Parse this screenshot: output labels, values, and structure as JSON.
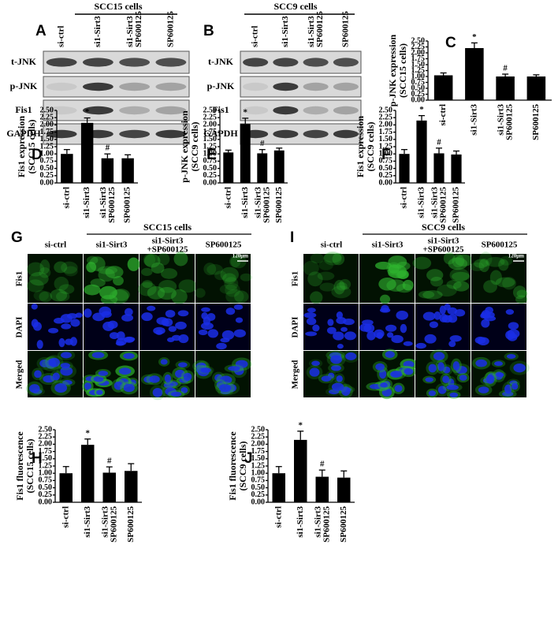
{
  "figure": {
    "panel_labels": [
      "A",
      "B",
      "C",
      "D",
      "E",
      "F",
      "G",
      "H",
      "I",
      "J"
    ],
    "western": [
      {
        "header": "SCC15 cells",
        "lanes": [
          "si-ctrl",
          "si1-Sirt3",
          "si1-Sirt3\nSP600125",
          "SP600125"
        ],
        "rows": [
          "t-JNK",
          "p-JNK",
          "Fis1",
          "GAPDH"
        ]
      },
      {
        "header": "SCC9 cells",
        "lanes": [
          "si-ctrl",
          "si1-Sirt3",
          "si1-Sirt3\nSP600125",
          "SP600125"
        ],
        "rows": [
          "t-JNK",
          "p-JNK",
          "Fis1",
          "GAPDH"
        ]
      }
    ],
    "imaging": [
      {
        "header": "SCC15 cells",
        "columns": [
          "si-ctrl",
          "si1-Sirt3",
          "si1-Sirt3\n+SP600125",
          "SP600125"
        ],
        "rows": [
          "Fis1",
          "DAPI",
          "Merged"
        ],
        "scale": "120μm"
      },
      {
        "header": "SCC9 cells",
        "columns": [
          "si-ctrl",
          "si1-Sirt3",
          "si1-Sirt3\n+SP600125",
          "SP600125"
        ],
        "rows": [
          "Fis1",
          "DAPI",
          "Merged"
        ],
        "scale": "120μm"
      }
    ]
  },
  "chart_data": [
    {
      "type": "bar",
      "ylabel": [
        "p-JNK expression",
        "(SCC15 cells)"
      ],
      "categories": [
        "si-ctrl",
        "si1-Sirt3",
        "si1-Sirt3\nSP600125",
        "SP600125"
      ],
      "values": [
        1.05,
        2.2,
        1.0,
        1.0
      ],
      "errors": [
        0.1,
        0.22,
        0.1,
        0.07
      ],
      "annotations": [
        null,
        "*",
        "#",
        null
      ],
      "color": "#000000",
      "ylim": [
        0,
        2.5
      ],
      "yticks": [
        {
          "value": 0,
          "label": "0.00"
        },
        {
          "value": 0.25,
          "label": "0.25"
        },
        {
          "value": 0.5,
          "label": "0.50"
        },
        {
          "value": 0.75,
          "label": "0.75"
        },
        {
          "value": 1,
          "label": "1.00"
        },
        {
          "value": 1.25,
          "label": "1.25"
        },
        {
          "value": 1.5,
          "label": "1.50"
        },
        {
          "value": 1.75,
          "label": "1.75"
        },
        {
          "value": 2,
          "label": "2.00"
        },
        {
          "value": 2.25,
          "label": "2.25"
        },
        {
          "value": 2.5,
          "label": "2.50"
        }
      ]
    },
    {
      "type": "bar",
      "ylabel": [
        "Fis1 expression",
        "(SCC15 cells)"
      ],
      "categories": [
        "si-ctrl",
        "si1-Sirt3",
        "si1-Sirt3\nSP600125",
        "SP600125"
      ],
      "values": [
        1.0,
        2.07,
        0.85,
        0.85
      ],
      "errors": [
        0.15,
        0.17,
        0.15,
        0.12
      ],
      "annotations": [
        null,
        "*",
        "#",
        null
      ],
      "color": "#000000",
      "ylim": [
        0,
        2.5
      ],
      "yticks": [
        {
          "value": 0,
          "label": "0.00"
        },
        {
          "value": 0.25,
          "label": "0.25"
        },
        {
          "value": 0.5,
          "label": "0.50"
        },
        {
          "value": 0.75,
          "label": "0.75"
        },
        {
          "value": 1,
          "label": "1.00"
        },
        {
          "value": 1.25,
          "label": "1.25"
        },
        {
          "value": 1.5,
          "label": "1.50"
        },
        {
          "value": 1.75,
          "label": "1.75"
        },
        {
          "value": 2,
          "label": "2.00"
        },
        {
          "value": 2.25,
          "label": "2.25"
        },
        {
          "value": 2.5,
          "label": "2.50"
        }
      ]
    },
    {
      "type": "bar",
      "ylabel": [
        "p-JNK expression",
        "(SCC9 cells)"
      ],
      "categories": [
        "si-ctrl",
        "si1-Sirt3",
        "si1-Sirt3\nSP600125",
        "SP600125"
      ],
      "values": [
        1.05,
        2.03,
        1.02,
        1.12
      ],
      "errors": [
        0.08,
        0.2,
        0.13,
        0.08
      ],
      "annotations": [
        null,
        "*",
        "#",
        null
      ],
      "color": "#000000",
      "ylim": [
        0,
        2.5
      ],
      "yticks": [
        {
          "value": 0,
          "label": "0.00"
        },
        {
          "value": 0.25,
          "label": "0.25"
        },
        {
          "value": 0.5,
          "label": "0.50"
        },
        {
          "value": 0.75,
          "label": "0.75"
        },
        {
          "value": 1,
          "label": "1.00"
        },
        {
          "value": 1.25,
          "label": "1.25"
        },
        {
          "value": 1.5,
          "label": "1.50"
        },
        {
          "value": 1.75,
          "label": "1.75"
        },
        {
          "value": 2,
          "label": "2.00"
        },
        {
          "value": 2.25,
          "label": "2.25"
        },
        {
          "value": 2.5,
          "label": "2.50"
        }
      ]
    },
    {
      "type": "bar",
      "ylabel": [
        "Fis1 expression",
        "(SCC9 cells)"
      ],
      "categories": [
        "si-ctrl",
        "si1-Sirt3",
        "si1-Sirt3\nSP600125",
        "SP600125"
      ],
      "values": [
        1.0,
        2.15,
        1.02,
        0.98
      ],
      "errors": [
        0.15,
        0.17,
        0.18,
        0.12
      ],
      "annotations": [
        null,
        "*",
        "#",
        null
      ],
      "color": "#000000",
      "ylim": [
        0,
        2.5
      ],
      "yticks": [
        {
          "value": 0,
          "label": "0.00"
        },
        {
          "value": 0.25,
          "label": "0.25"
        },
        {
          "value": 0.5,
          "label": "0.50"
        },
        {
          "value": 0.75,
          "label": "0.75"
        },
        {
          "value": 1,
          "label": "1.00"
        },
        {
          "value": 1.25,
          "label": "1.25"
        },
        {
          "value": 1.5,
          "label": "1.50"
        },
        {
          "value": 1.75,
          "label": "1.75"
        },
        {
          "value": 2,
          "label": "2.00"
        },
        {
          "value": 2.25,
          "label": "2.25"
        },
        {
          "value": 2.5,
          "label": "2.50"
        }
      ]
    },
    {
      "type": "bar",
      "ylabel": [
        "Fis1 fluorescence",
        "(SCC15 cells)"
      ],
      "categories": [
        "si-ctrl",
        "si1-Sirt3",
        "si1-Sirt3\nSP600125",
        "SP600125"
      ],
      "values": [
        1.0,
        1.98,
        1.02,
        1.08
      ],
      "errors": [
        0.23,
        0.2,
        0.2,
        0.25
      ],
      "annotations": [
        null,
        "*",
        "#",
        null
      ],
      "color": "#000000",
      "ylim": [
        0,
        2.5
      ],
      "yticks": [
        {
          "value": 0,
          "label": "0.00"
        },
        {
          "value": 0.25,
          "label": "0.25"
        },
        {
          "value": 0.5,
          "label": "0.50"
        },
        {
          "value": 0.75,
          "label": "0.75"
        },
        {
          "value": 1,
          "label": "1.00"
        },
        {
          "value": 1.25,
          "label": "1.25"
        },
        {
          "value": 1.5,
          "label": "1.50"
        },
        {
          "value": 1.75,
          "label": "1.75"
        },
        {
          "value": 2,
          "label": "2.00"
        },
        {
          "value": 2.25,
          "label": "2.25"
        },
        {
          "value": 2.5,
          "label": "2.50"
        }
      ]
    },
    {
      "type": "bar",
      "ylabel": [
        "Fis1 fluorescence",
        "(SCC9 cells)"
      ],
      "categories": [
        "si-ctrl",
        "si1-Sirt3",
        "si1-Sirt3\nSP600125",
        "SP600125"
      ],
      "values": [
        1.0,
        2.15,
        0.88,
        0.85
      ],
      "errors": [
        0.23,
        0.3,
        0.23,
        0.23
      ],
      "annotations": [
        null,
        "*",
        "#",
        null
      ],
      "color": "#000000",
      "ylim": [
        0,
        2.5
      ],
      "yticks": [
        {
          "value": 0,
          "label": "0.00"
        },
        {
          "value": 0.25,
          "label": "0.25"
        },
        {
          "value": 0.5,
          "label": "0.50"
        },
        {
          "value": 0.75,
          "label": "0.75"
        },
        {
          "value": 1,
          "label": "1.00"
        },
        {
          "value": 1.25,
          "label": "1.25"
        },
        {
          "value": 1.5,
          "label": "1.50"
        },
        {
          "value": 1.75,
          "label": "1.75"
        },
        {
          "value": 2,
          "label": "2.00"
        },
        {
          "value": 2.25,
          "label": "2.25"
        },
        {
          "value": 2.5,
          "label": "2.50"
        }
      ]
    }
  ]
}
